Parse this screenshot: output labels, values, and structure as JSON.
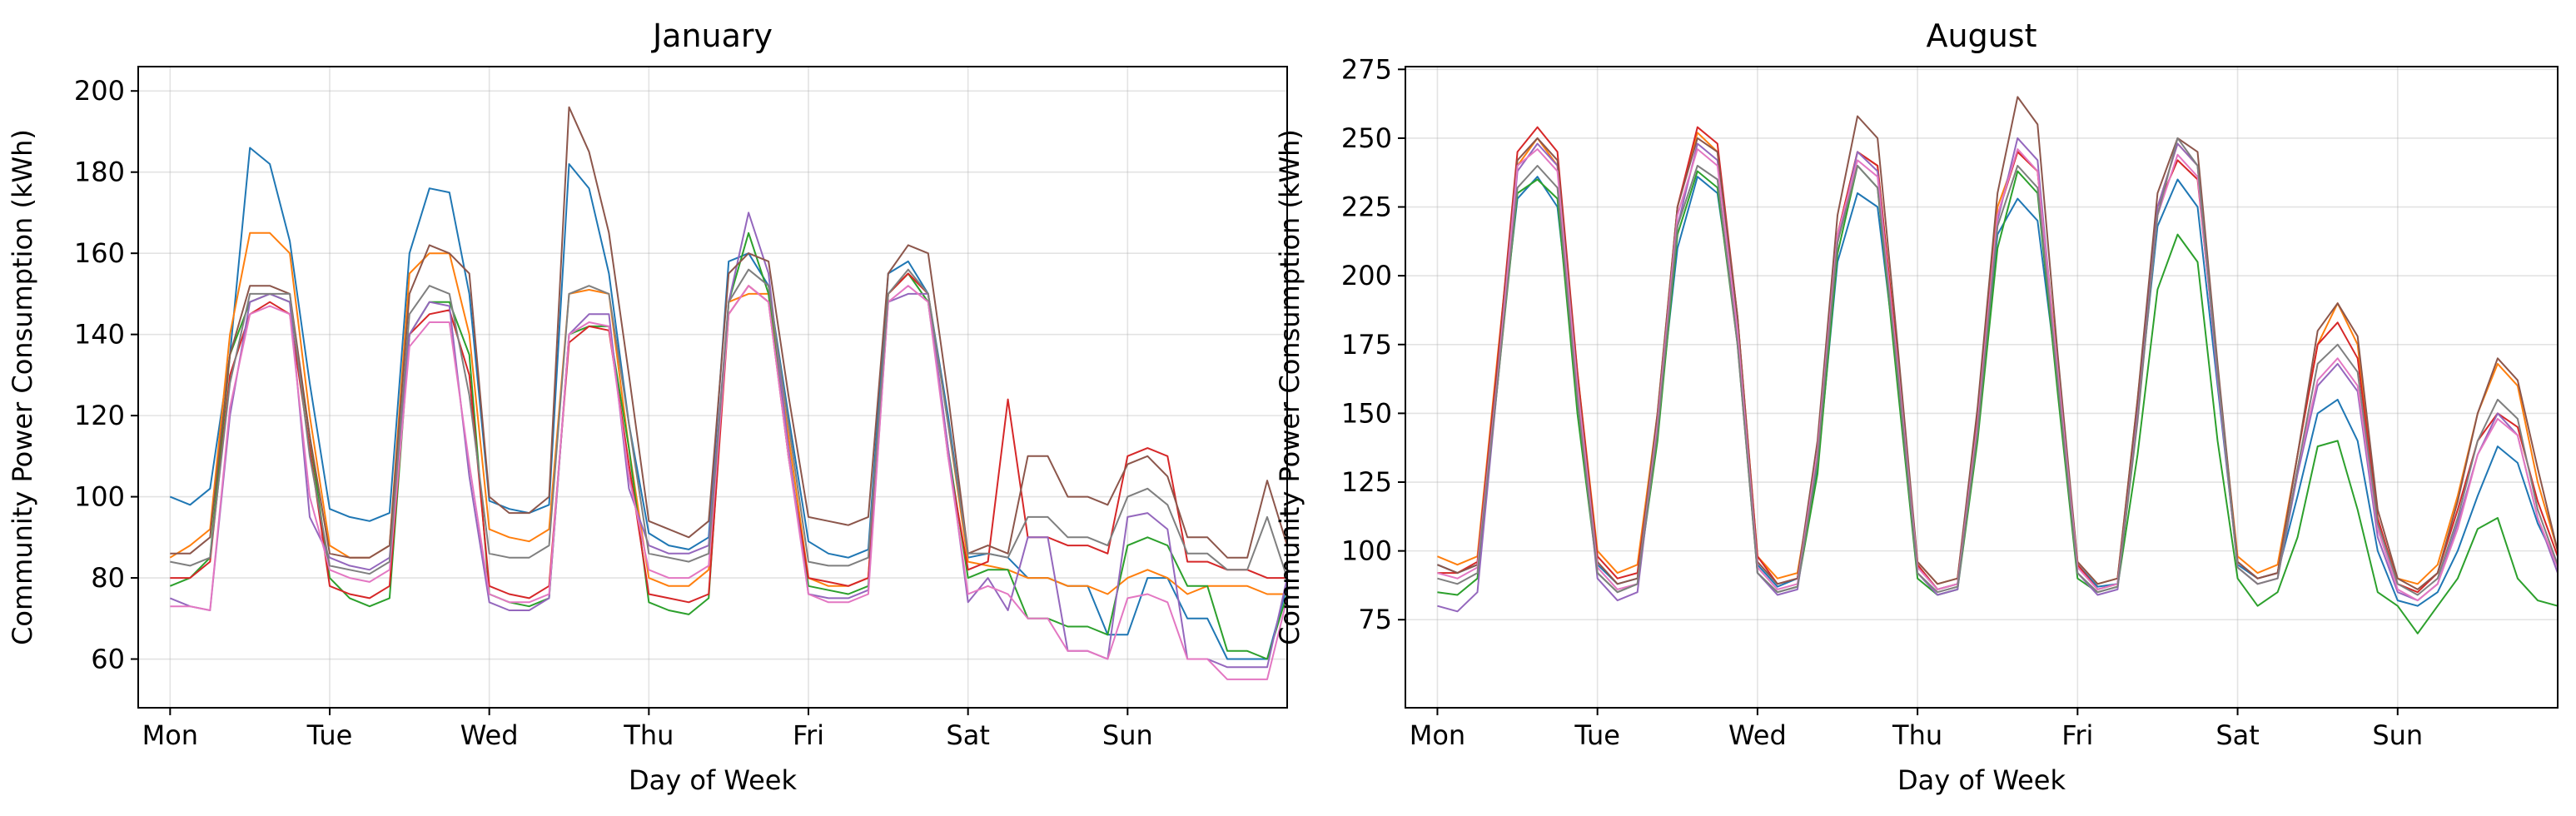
{
  "chart_data": [
    {
      "type": "line",
      "title": "January",
      "xlabel": "Day of Week",
      "ylabel": "Community Power Consumption (kWh)",
      "xlim": [
        -0.2,
        7.0
      ],
      "ylim": [
        48,
        206
      ],
      "x_ticks": [
        0,
        1,
        2,
        3,
        4,
        5,
        6
      ],
      "x_tick_labels": [
        "Mon",
        "Tue",
        "Wed",
        "Thu",
        "Fri",
        "Sat",
        "Sun"
      ],
      "y_ticks": [
        60,
        80,
        100,
        120,
        140,
        160,
        180,
        200
      ],
      "y_tick_labels": [
        "60",
        "80",
        "100",
        "120",
        "140",
        "160",
        "180",
        "200"
      ],
      "grid": true,
      "x_resolution_days": 0.125,
      "series": [
        {
          "color": "#1f77b4",
          "values": [
            100,
            98,
            102,
            135,
            186,
            182,
            163,
            128,
            97,
            95,
            94,
            96,
            160,
            176,
            175,
            150,
            99,
            97,
            96,
            98,
            182,
            176,
            155,
            118,
            91,
            88,
            87,
            90,
            158,
            160,
            152,
            120,
            89,
            86,
            85,
            87,
            155,
            158,
            150,
            120,
            85,
            86,
            85,
            80,
            80,
            78,
            78,
            66,
            66,
            80,
            80,
            70,
            70,
            60,
            60,
            60,
            78
          ]
        },
        {
          "color": "#ff7f0e",
          "values": [
            85,
            88,
            92,
            140,
            165,
            165,
            160,
            120,
            88,
            85,
            85,
            88,
            155,
            160,
            160,
            140,
            92,
            90,
            89,
            92,
            150,
            151,
            150,
            112,
            80,
            78,
            78,
            82,
            148,
            150,
            150,
            115,
            80,
            78,
            78,
            80,
            150,
            155,
            150,
            118,
            84,
            83,
            82,
            80,
            80,
            78,
            78,
            76,
            80,
            82,
            80,
            76,
            78,
            78,
            78,
            76,
            76
          ]
        },
        {
          "color": "#2ca02c",
          "values": [
            78,
            80,
            85,
            135,
            148,
            150,
            148,
            115,
            80,
            75,
            73,
            75,
            140,
            148,
            148,
            135,
            76,
            74,
            73,
            75,
            140,
            142,
            142,
            112,
            74,
            72,
            71,
            75,
            148,
            165,
            150,
            110,
            78,
            77,
            76,
            78,
            150,
            155,
            148,
            112,
            80,
            82,
            82,
            70,
            70,
            68,
            68,
            66,
            88,
            90,
            88,
            78,
            78,
            62,
            62,
            60,
            76
          ]
        },
        {
          "color": "#d62728",
          "values": [
            80,
            80,
            84,
            130,
            145,
            148,
            145,
            112,
            78,
            76,
            75,
            78,
            140,
            145,
            146,
            130,
            78,
            76,
            75,
            78,
            138,
            142,
            141,
            108,
            76,
            75,
            74,
            76,
            145,
            152,
            148,
            110,
            80,
            79,
            78,
            80,
            150,
            155,
            150,
            110,
            82,
            84,
            124,
            90,
            90,
            88,
            88,
            86,
            110,
            112,
            110,
            84,
            84,
            82,
            82,
            80,
            80
          ]
        },
        {
          "color": "#9467bd",
          "values": [
            75,
            73,
            72,
            120,
            148,
            150,
            148,
            95,
            85,
            83,
            82,
            85,
            140,
            148,
            147,
            105,
            74,
            72,
            72,
            75,
            140,
            145,
            145,
            102,
            88,
            86,
            86,
            88,
            148,
            170,
            155,
            112,
            76,
            75,
            75,
            77,
            148,
            150,
            150,
            112,
            74,
            80,
            72,
            90,
            90,
            62,
            62,
            60,
            95,
            96,
            92,
            60,
            60,
            58,
            58,
            58,
            80
          ]
        },
        {
          "color": "#8c564b",
          "values": [
            86,
            86,
            90,
            135,
            152,
            152,
            150,
            115,
            86,
            85,
            85,
            88,
            150,
            162,
            160,
            155,
            100,
            96,
            96,
            100,
            196,
            185,
            165,
            130,
            94,
            92,
            90,
            94,
            155,
            160,
            158,
            125,
            95,
            94,
            93,
            95,
            155,
            162,
            160,
            125,
            86,
            88,
            86,
            110,
            110,
            100,
            100,
            98,
            108,
            110,
            105,
            90,
            90,
            85,
            85,
            104,
            88
          ]
        },
        {
          "color": "#e377c2",
          "values": [
            73,
            73,
            72,
            122,
            145,
            147,
            145,
            100,
            82,
            80,
            79,
            82,
            137,
            143,
            143,
            108,
            76,
            74,
            74,
            76,
            140,
            143,
            142,
            105,
            82,
            80,
            80,
            83,
            145,
            152,
            148,
            110,
            76,
            74,
            74,
            76,
            148,
            152,
            148,
            110,
            76,
            78,
            76,
            70,
            70,
            62,
            62,
            60,
            75,
            76,
            74,
            60,
            60,
            55,
            55,
            55,
            75
          ]
        },
        {
          "color": "#7f7f7f",
          "values": [
            84,
            83,
            85,
            128,
            150,
            150,
            150,
            110,
            83,
            82,
            81,
            84,
            145,
            152,
            150,
            125,
            86,
            85,
            85,
            88,
            150,
            152,
            150,
            118,
            86,
            85,
            84,
            86,
            148,
            156,
            152,
            118,
            84,
            83,
            83,
            85,
            150,
            156,
            150,
            118,
            86,
            86,
            85,
            95,
            95,
            90,
            90,
            88,
            100,
            102,
            98,
            86,
            86,
            82,
            82,
            95,
            80
          ]
        }
      ]
    },
    {
      "type": "line",
      "title": "August",
      "xlabel": "Day of Week",
      "ylabel": "Community Power Consumption (kWh)",
      "xlim": [
        -0.2,
        7.0
      ],
      "ylim": [
        43,
        276
      ],
      "x_ticks": [
        0,
        1,
        2,
        3,
        4,
        5,
        6
      ],
      "x_tick_labels": [
        "Mon",
        "Tue",
        "Wed",
        "Thu",
        "Fri",
        "Sat",
        "Sun"
      ],
      "y_ticks": [
        75,
        100,
        125,
        150,
        175,
        200,
        225,
        250,
        275
      ],
      "y_tick_labels": [
        "75",
        "100",
        "125",
        "150",
        "175",
        "200",
        "225",
        "250",
        "275"
      ],
      "grid": true,
      "x_resolution_days": 0.125,
      "series": [
        {
          "color": "#1f77b4",
          "values": [
            95,
            92,
            95,
            165,
            228,
            236,
            225,
            160,
            95,
            88,
            90,
            145,
            210,
            236,
            230,
            180,
            95,
            87,
            90,
            130,
            205,
            230,
            225,
            165,
            95,
            86,
            88,
            145,
            215,
            228,
            220,
            162,
            95,
            87,
            88,
            150,
            218,
            235,
            225,
            160,
            95,
            90,
            92,
            120,
            150,
            155,
            140,
            100,
            82,
            80,
            85,
            100,
            120,
            138,
            132,
            110,
            95
          ]
        },
        {
          "color": "#ff7f0e",
          "values": [
            98,
            95,
            98,
            170,
            240,
            250,
            240,
            165,
            100,
            92,
            95,
            150,
            225,
            252,
            245,
            185,
            98,
            90,
            92,
            135,
            215,
            245,
            240,
            170,
            96,
            88,
            90,
            150,
            225,
            245,
            238,
            168,
            96,
            88,
            90,
            155,
            225,
            248,
            240,
            165,
            98,
            92,
            95,
            135,
            175,
            190,
            175,
            110,
            90,
            88,
            95,
            120,
            150,
            168,
            160,
            125,
            100
          ]
        },
        {
          "color": "#2ca02c",
          "values": [
            85,
            84,
            90,
            160,
            230,
            235,
            228,
            150,
            92,
            85,
            88,
            140,
            215,
            238,
            232,
            175,
            92,
            85,
            87,
            128,
            208,
            240,
            232,
            160,
            90,
            84,
            86,
            140,
            210,
            238,
            230,
            158,
            90,
            85,
            87,
            135,
            195,
            215,
            205,
            140,
            90,
            80,
            85,
            105,
            138,
            140,
            115,
            85,
            80,
            70,
            80,
            90,
            108,
            112,
            90,
            82,
            80
          ]
        },
        {
          "color": "#d62728",
          "values": [
            92,
            92,
            96,
            168,
            245,
            254,
            245,
            165,
            98,
            90,
            92,
            148,
            225,
            254,
            248,
            185,
            98,
            88,
            90,
            135,
            215,
            245,
            240,
            170,
            95,
            86,
            88,
            148,
            222,
            245,
            238,
            165,
            95,
            86,
            88,
            150,
            225,
            242,
            235,
            165,
            96,
            90,
            92,
            135,
            175,
            183,
            170,
            112,
            88,
            85,
            92,
            115,
            140,
            150,
            145,
            118,
            98
          ]
        },
        {
          "color": "#9467bd",
          "values": [
            80,
            78,
            85,
            160,
            238,
            248,
            240,
            158,
            90,
            82,
            85,
            145,
            218,
            248,
            242,
            180,
            92,
            84,
            86,
            135,
            212,
            245,
            238,
            165,
            92,
            84,
            86,
            145,
            220,
            250,
            242,
            165,
            92,
            84,
            86,
            150,
            225,
            248,
            240,
            162,
            94,
            88,
            90,
            128,
            160,
            168,
            158,
            105,
            85,
            82,
            88,
            110,
            135,
            150,
            142,
            112,
            92
          ]
        },
        {
          "color": "#8c564b",
          "values": [
            95,
            92,
            95,
            165,
            242,
            250,
            242,
            162,
            96,
            88,
            90,
            150,
            225,
            250,
            245,
            185,
            96,
            88,
            90,
            140,
            222,
            258,
            250,
            175,
            96,
            88,
            90,
            152,
            230,
            265,
            255,
            172,
            96,
            88,
            90,
            155,
            230,
            250,
            245,
            168,
            96,
            90,
            92,
            135,
            180,
            190,
            178,
            115,
            90,
            86,
            92,
            118,
            150,
            170,
            162,
            130,
            100
          ]
        },
        {
          "color": "#e377c2",
          "values": [
            92,
            90,
            94,
            162,
            240,
            246,
            238,
            160,
            94,
            86,
            88,
            146,
            222,
            246,
            240,
            180,
            94,
            86,
            88,
            136,
            215,
            242,
            236,
            168,
            94,
            86,
            88,
            146,
            222,
            246,
            238,
            166,
            94,
            86,
            88,
            148,
            222,
            244,
            236,
            164,
            94,
            88,
            90,
            130,
            162,
            170,
            160,
            108,
            86,
            82,
            88,
            108,
            135,
            148,
            142,
            112,
            94
          ]
        },
        {
          "color": "#7f7f7f",
          "values": [
            90,
            88,
            92,
            160,
            232,
            240,
            232,
            155,
            92,
            85,
            88,
            143,
            218,
            240,
            235,
            175,
            92,
            85,
            87,
            133,
            212,
            240,
            232,
            165,
            92,
            85,
            87,
            143,
            218,
            240,
            232,
            162,
            92,
            85,
            87,
            147,
            222,
            250,
            240,
            165,
            94,
            88,
            90,
            130,
            168,
            175,
            165,
            110,
            88,
            84,
            90,
            112,
            140,
            155,
            148,
            115,
            95
          ]
        }
      ]
    }
  ]
}
